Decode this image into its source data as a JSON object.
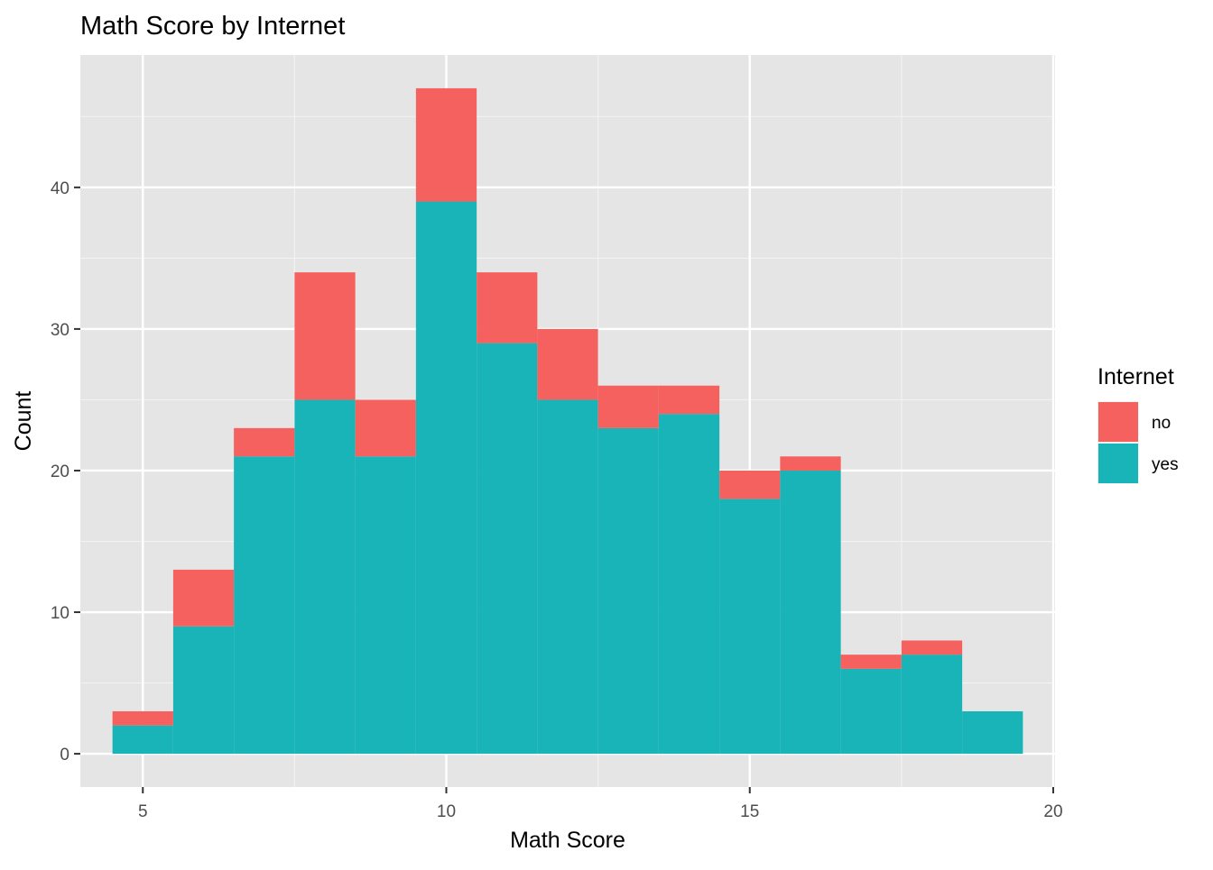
{
  "chart_data": {
    "type": "bar",
    "stacked": true,
    "title": "Math Score by Internet",
    "xlabel": "Math Score",
    "ylabel": "Count",
    "bin_width": 1,
    "x": [
      5,
      6,
      7,
      8,
      9,
      10,
      11,
      12,
      13,
      14,
      15,
      16,
      17,
      18,
      19
    ],
    "series": [
      {
        "name": "yes",
        "color": "#19B4B8",
        "values": [
          2,
          9,
          21,
          25,
          21,
          39,
          29,
          25,
          23,
          24,
          18,
          20,
          6,
          7,
          3
        ]
      },
      {
        "name": "no",
        "color": "#F4615E",
        "values": [
          1,
          4,
          2,
          9,
          4,
          8,
          5,
          5,
          3,
          2,
          2,
          1,
          1,
          1,
          0
        ]
      }
    ],
    "xlim": [
      3.97,
      20.03
    ],
    "ylim": [
      -2.35,
      49.35
    ],
    "xticks": [
      5,
      10,
      15,
      20
    ],
    "yticks": [
      0,
      10,
      20,
      30,
      40
    ],
    "grid": true,
    "panel_background": "#E5E5E5",
    "legend": {
      "title": "Internet",
      "position": "right",
      "entries": [
        {
          "label": "no",
          "color": "#F4615E"
        },
        {
          "label": "yes",
          "color": "#19B4B8"
        }
      ]
    }
  }
}
